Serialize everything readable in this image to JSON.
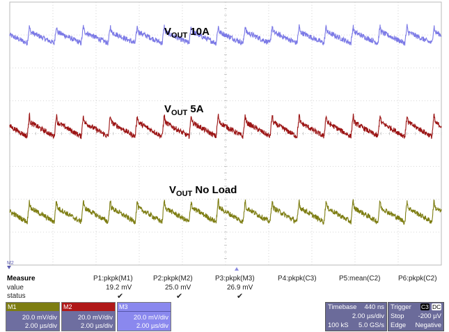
{
  "chart_data": {
    "type": "line",
    "description_of_axes": "",
    "grid": true,
    "series": [
      {
        "name": "VOUT 10A",
        "label_main": "V",
        "label_sub": "OUT",
        "label_tail": " 10A",
        "color": "#7b79e6",
        "offset_div": 2.9,
        "spike_mv": 7.5,
        "ripple_pkpk_mv": 19.2
      },
      {
        "name": "VOUT 5A",
        "label_main": "V",
        "label_sub": "OUT",
        "label_tail": " 5A",
        "color": "#9b1414",
        "offset_div": 0.1,
        "spike_mv": 9.5,
        "ripple_pkpk_mv": 25.0
      },
      {
        "name": "VOUT No Load",
        "label_main": "V",
        "label_sub": "OUT",
        "label_tail": " No Load",
        "color": "#7d7d12",
        "offset_div": -2.5,
        "spike_mv": 9.5,
        "ripple_pkpk_mv": 26.9
      }
    ],
    "periods_on_screen": 16,
    "divisions_x": 10,
    "divisions_y": 8
  },
  "marker": "M2",
  "measure": {
    "title": "Measure",
    "row_labels": [
      "value",
      "status"
    ],
    "params": [
      {
        "name": "P1:pkpk(M1)",
        "value": "19.2 mV",
        "status": "✔"
      },
      {
        "name": "P2:pkpk(M2)",
        "value": "25.0 mV",
        "status": "✔"
      },
      {
        "name": "P3:pkpk(M3)",
        "value": "26.9 mV",
        "status": "✔"
      },
      {
        "name": "P4:pkpk(C3)",
        "value": "",
        "status": ""
      },
      {
        "name": "P5:mean(C2)",
        "value": "",
        "status": ""
      },
      {
        "name": "P6:pkpk(C2)",
        "value": "",
        "status": ""
      }
    ]
  },
  "channels": [
    {
      "name": "M1",
      "vdiv": "20.0 mV/div",
      "tdiv": "2.00 µs/div",
      "hdr_color": "#7d7d12",
      "body_color": "#6e6ea0"
    },
    {
      "name": "M2",
      "vdiv": "20.0 mV/div",
      "tdiv": "2.00 µs/div",
      "hdr_color": "#b01818",
      "body_color": "#6e6ea0"
    },
    {
      "name": "M3",
      "vdiv": "20.0 mV/div",
      "tdiv": "2.00 µs/div",
      "hdr_color": "#8a88ee",
      "body_color": "#8a88ee"
    }
  ],
  "timebase": {
    "label": "Timebase",
    "delay": "440 ns",
    "tdiv": "2.00 µs/div",
    "samples": "100 kS",
    "rate": "5.0 GS/s"
  },
  "trigger": {
    "label": "Trigger",
    "source": "C3",
    "coupling": "DC",
    "mode": "Stop",
    "level": "-200 µV",
    "type": "Edge",
    "slope": "Negative"
  }
}
